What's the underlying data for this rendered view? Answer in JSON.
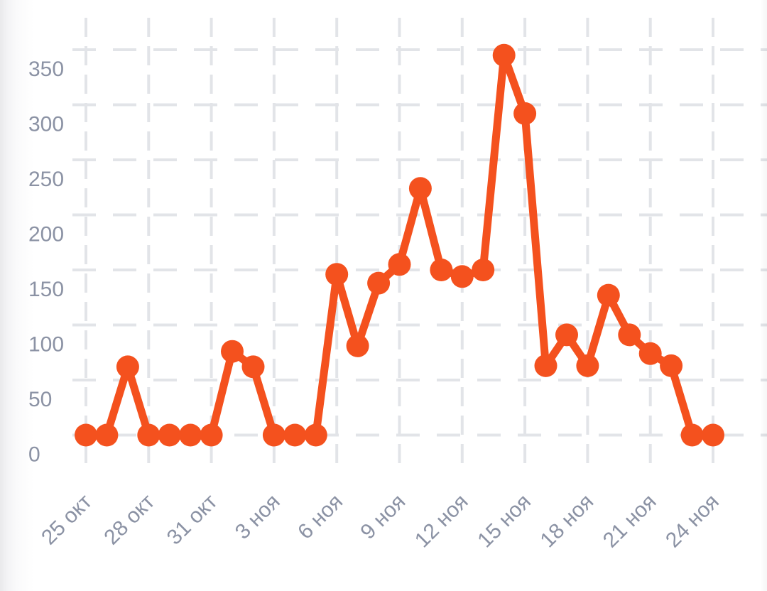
{
  "chart_data": {
    "type": "line",
    "title": "",
    "xlabel": "",
    "ylabel": "",
    "legend": "none",
    "grid": "dashed",
    "series_color": "#f4511e",
    "values": [
      0,
      0,
      62,
      0,
      0,
      0,
      0,
      76,
      62,
      0,
      0,
      0,
      146,
      81,
      138,
      155,
      224,
      150,
      144,
      150,
      345,
      292,
      63,
      91,
      63,
      127,
      91,
      74,
      63,
      0,
      0
    ],
    "x_tick_labels": [
      "25 окт",
      "28 окт",
      "31 окт",
      "3 ноя",
      "6 ноя",
      "9 ноя",
      "12 ноя",
      "15 ноя",
      "18 ноя",
      "21 ноя",
      "24 ноя"
    ],
    "x_tick_indices": [
      0,
      3,
      6,
      9,
      12,
      15,
      18,
      21,
      24,
      27,
      30
    ],
    "y_tick_labels": [
      "0",
      "50",
      "100",
      "150",
      "200",
      "250",
      "300",
      "350"
    ],
    "y_tick_values": [
      0,
      50,
      100,
      150,
      200,
      250,
      300,
      350
    ],
    "ylim": [
      0,
      365
    ],
    "x_tick_rotation_deg": -45
  },
  "colors": {
    "line": "#f4511e",
    "point": "#f4511e",
    "grid": "#e2e4e8",
    "axis_label": "#8b92a4",
    "background": "#ffffff"
  }
}
